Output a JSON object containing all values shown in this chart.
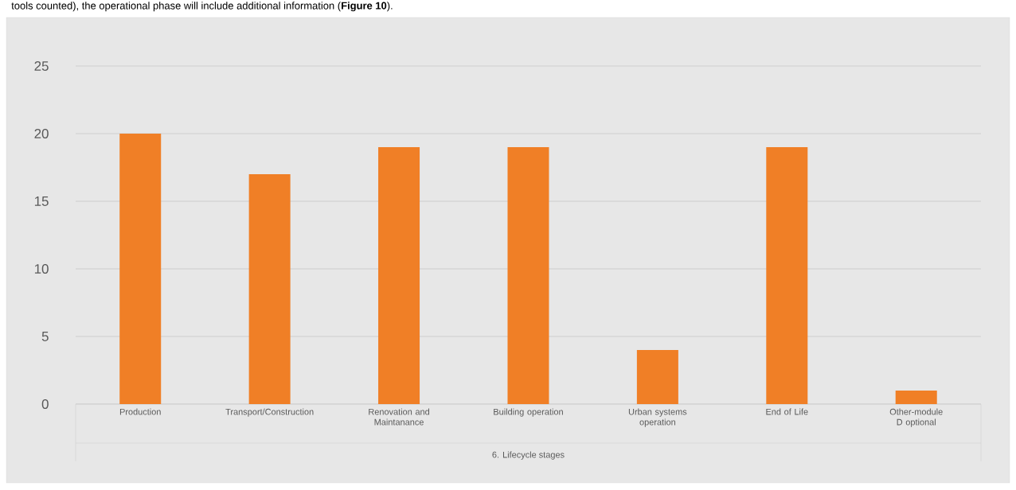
{
  "chart_data": {
    "type": "bar",
    "xlabel": "6. Lifecycle stages",
    "categories": [
      "Production",
      "Transport/Construction",
      "Renovation and Maintanance",
      "Building operation",
      "Urban systems operation",
      "End of Life",
      "Other-module D optional"
    ],
    "values": [
      20,
      17,
      19,
      19,
      4,
      19,
      1
    ],
    "color": "#f07f26",
    "ylim": [
      0,
      25
    ],
    "yticks": [
      0,
      5,
      10,
      15,
      20,
      25
    ],
    "grid": "y",
    "annotations": [
      "tools counted), the operational phase will include additional information (**Figure 10**)."
    ]
  }
}
